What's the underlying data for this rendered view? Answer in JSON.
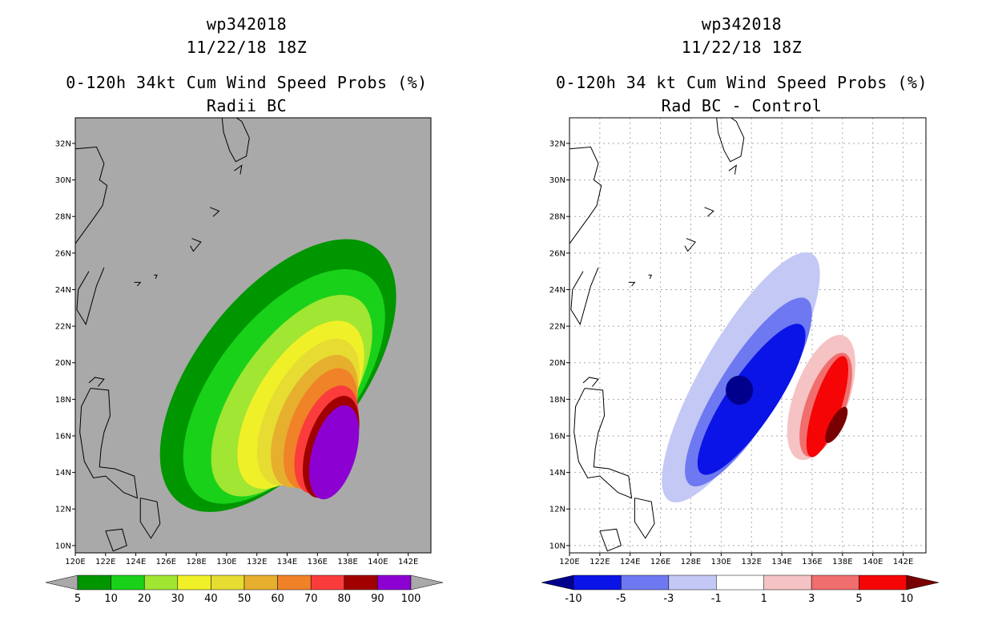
{
  "chart_data": [
    {
      "type": "heatmap",
      "id": "probs",
      "title_lines": [
        "wp342018",
        "11/22/18 18Z",
        "0-120h 34kt Cum Wind Speed Probs (%)",
        "Radii BC"
      ],
      "xlabel": "",
      "ylabel": "",
      "xlim": [
        120,
        143.5
      ],
      "ylim": [
        9.6,
        33.4
      ],
      "x_ticks": [
        120,
        122,
        124,
        126,
        128,
        130,
        132,
        134,
        136,
        138,
        140,
        142
      ],
      "x_tick_labels": [
        "120E",
        "122E",
        "124E",
        "126E",
        "128E",
        "130E",
        "132E",
        "134E",
        "136E",
        "138E",
        "140E",
        "142E"
      ],
      "y_ticks": [
        10,
        12,
        14,
        16,
        18,
        20,
        22,
        24,
        26,
        28,
        30,
        32
      ],
      "y_tick_labels": [
        "10N",
        "12N",
        "14N",
        "16N",
        "18N",
        "20N",
        "22N",
        "24N",
        "26N",
        "28N",
        "30N",
        "32N"
      ],
      "grid": false,
      "background": "#a9a9a9",
      "colorbar": {
        "labels": [
          "5",
          "10",
          "20",
          "30",
          "40",
          "50",
          "60",
          "70",
          "80",
          "90",
          "100"
        ],
        "colors": [
          "#009600",
          "#19d119",
          "#a0e632",
          "#f0f028",
          "#e6dc32",
          "#e6af2d",
          "#f08228",
          "#fa3c3c",
          "#a00000",
          "#8c00d2"
        ]
      },
      "contours": [
        {
          "level": 5,
          "color": "#009600",
          "center": [
            133.4,
            19.3
          ],
          "rx": 5.4,
          "ry": 8.8,
          "rot": 38
        },
        {
          "level": 10,
          "color": "#19d119",
          "center": [
            133.8,
            18.7
          ],
          "rx": 4.5,
          "ry": 7.6,
          "rot": 38
        },
        {
          "level": 20,
          "color": "#a0e632",
          "center": [
            134.3,
            18.2
          ],
          "rx": 3.6,
          "ry": 6.4,
          "rot": 35
        },
        {
          "level": 30,
          "color": "#f0f028",
          "center": [
            134.9,
            17.7
          ],
          "rx": 3.0,
          "ry": 5.2,
          "rot": 32
        },
        {
          "level": 40,
          "color": "#e6dc32",
          "center": [
            135.4,
            17.3
          ],
          "rx": 2.6,
          "ry": 4.4,
          "rot": 28
        },
        {
          "level": 50,
          "color": "#e6af2d",
          "center": [
            135.8,
            16.8
          ],
          "rx": 2.3,
          "ry": 3.9,
          "rot": 25
        },
        {
          "level": 60,
          "color": "#f08228",
          "center": [
            136.2,
            16.4
          ],
          "rx": 2.0,
          "ry": 3.5,
          "rot": 22
        },
        {
          "level": 70,
          "color": "#fa3c3c",
          "center": [
            136.6,
            15.8
          ],
          "rx": 1.8,
          "ry": 3.1,
          "rot": 20
        },
        {
          "level": 80,
          "color": "#a00000",
          "center": [
            136.9,
            15.4
          ],
          "rx": 1.6,
          "ry": 2.9,
          "rot": 18
        },
        {
          "level": 90,
          "color": "#8c00d2",
          "center": [
            137.1,
            15.1
          ],
          "rx": 1.45,
          "ry": 2.65,
          "rot": 16
        }
      ]
    },
    {
      "type": "heatmap",
      "id": "diff",
      "title_lines": [
        "wp342018",
        "11/22/18 18Z",
        "0-120h 34 kt Cum Wind Speed Probs (%)",
        "Rad BC - Control"
      ],
      "xlabel": "",
      "ylabel": "",
      "xlim": [
        120,
        143.5
      ],
      "ylim": [
        9.6,
        33.4
      ],
      "x_ticks": [
        120,
        122,
        124,
        126,
        128,
        130,
        132,
        134,
        136,
        138,
        140,
        142
      ],
      "x_tick_labels": [
        "120E",
        "122E",
        "124E",
        "126E",
        "128E",
        "130E",
        "132E",
        "134E",
        "136E",
        "138E",
        "140E",
        "142E"
      ],
      "y_ticks": [
        10,
        12,
        14,
        16,
        18,
        20,
        22,
        24,
        26,
        28,
        30,
        32
      ],
      "y_tick_labels": [
        "10N",
        "12N",
        "14N",
        "16N",
        "18N",
        "20N",
        "22N",
        "24N",
        "26N",
        "28N",
        "30N",
        "32N"
      ],
      "grid": true,
      "background": "#ffffff",
      "colorbar": {
        "labels": [
          "-10",
          "-5",
          "-3",
          "-1",
          "1",
          "3",
          "5",
          "10"
        ],
        "colors": [
          "#00008c",
          "#0a14e6",
          "#6e78f0",
          "#c3c8f5",
          "#ffffff",
          "#f5c3c3",
          "#f06e6e",
          "#f50505",
          "#780000"
        ]
      },
      "contours": [
        {
          "level": -1,
          "color": "#c3c8f5",
          "center": [
            131.3,
            19.2
          ],
          "rx": 2.6,
          "ry": 7.8,
          "rot": 30
        },
        {
          "level": -3,
          "color": "#6e78f0",
          "center": [
            131.8,
            18.4
          ],
          "rx": 2.0,
          "ry": 6.0,
          "rot": 32
        },
        {
          "level": -5,
          "color": "#0a14e6",
          "center": [
            132.0,
            18.0
          ],
          "rx": 1.6,
          "ry": 4.9,
          "rot": 34
        },
        {
          "level": -10,
          "color": "#00008c",
          "center": [
            131.2,
            18.5
          ],
          "rx": 0.9,
          "ry": 0.8,
          "rot": 0
        },
        {
          "level": 1,
          "color": "#f5c3c3",
          "center": [
            136.6,
            18.1
          ],
          "rx": 1.8,
          "ry": 3.6,
          "rot": 20
        },
        {
          "level": 3,
          "color": "#f06e6e",
          "center": [
            136.9,
            17.7
          ],
          "rx": 1.3,
          "ry": 3.0,
          "rot": 20
        },
        {
          "level": 5,
          "color": "#f50505",
          "center": [
            137.0,
            17.6
          ],
          "rx": 0.9,
          "ry": 2.9,
          "rot": 18
        },
        {
          "level": 10,
          "color": "#780000",
          "center": [
            137.6,
            16.6
          ],
          "rx": 0.45,
          "ry": 1.1,
          "rot": 28
        }
      ]
    }
  ]
}
